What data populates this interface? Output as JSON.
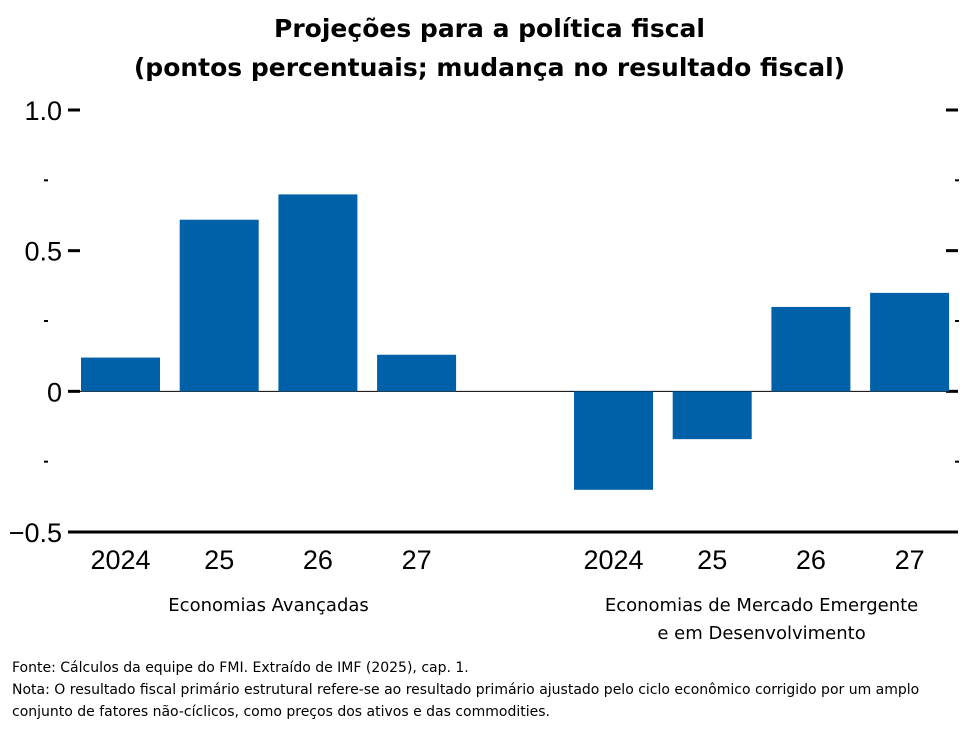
{
  "chart_data": {
    "type": "bar",
    "title": "Projeções para a política fiscal",
    "subtitle": "(pontos percentuais; mudança no resultado fiscal)",
    "ylim": [
      -0.5,
      1.0
    ],
    "y_ticks_labeled": [
      {
        "value": 1.0,
        "label": "1.0"
      },
      {
        "value": 0.5,
        "label": "0.5"
      },
      {
        "value": 0.0,
        "label": "0"
      },
      {
        "value": -0.5,
        "label": "−0.5"
      }
    ],
    "y_ticks_minor": [
      0.75,
      0.25,
      -0.25
    ],
    "bar_color": "#0060A8",
    "groups": [
      {
        "name_lines": [
          "Economias Avançadas"
        ],
        "categories": [
          "2024",
          "25",
          "26",
          "27"
        ],
        "values": [
          0.12,
          0.61,
          0.7,
          0.13
        ]
      },
      {
        "name_lines": [
          "Economias de Mercado Emergente",
          "e em Desenvolvimento"
        ],
        "categories": [
          "2024",
          "25",
          "26",
          "27"
        ],
        "values": [
          -0.35,
          -0.17,
          0.3,
          0.35
        ]
      }
    ]
  },
  "footnotes": {
    "source": "Fonte: Cálculos da equipe do FMI. Extraído de IMF (2025), cap. 1.",
    "note": "Nota: O resultado fiscal primário estrutural refere-se ao resultado primário ajustado pelo ciclo econômico corrigido por um amplo conjunto de fatores não-cíclicos, como preços dos ativos e das commodities."
  }
}
